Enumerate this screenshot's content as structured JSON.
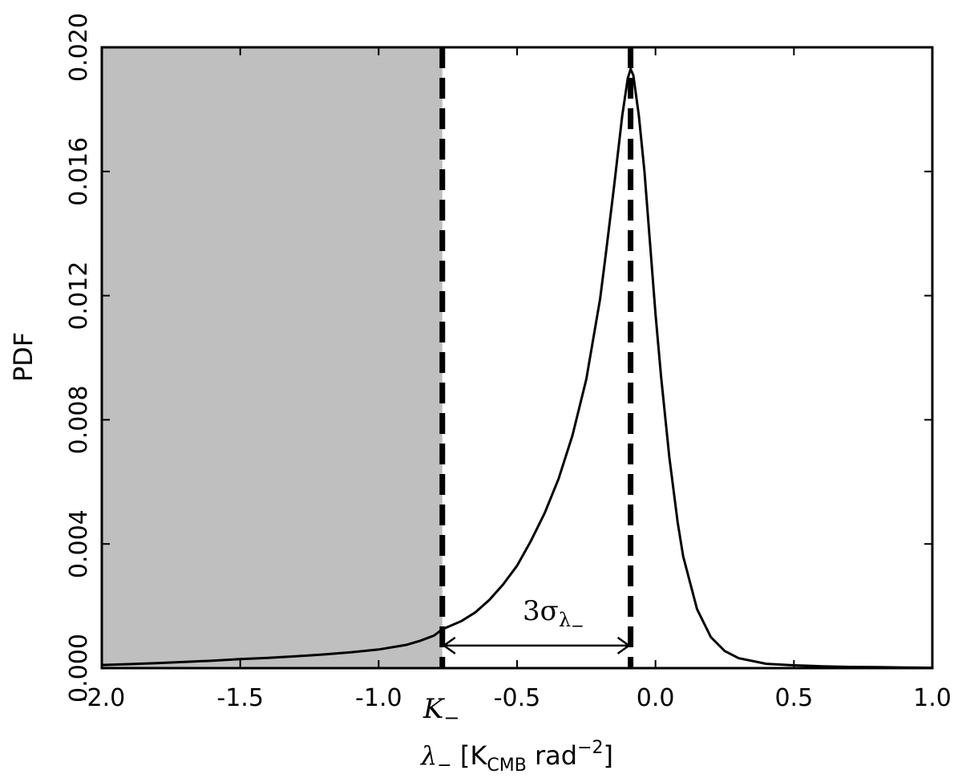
{
  "chart_data": {
    "type": "line",
    "title": "",
    "xlabel": "λ₋ [K_CMB rad⁻²]",
    "xlabel_parts": {
      "lambda": "λ",
      "lambda_sub": "−",
      "bracket_open": " [K",
      "k_sub": "CMB",
      "rad": " rad",
      "rad_sup": "−2",
      "bracket_close": "]"
    },
    "ylabel": "PDF",
    "xlim": [
      -2.0,
      1.0
    ],
    "ylim": [
      0.0,
      0.02
    ],
    "x_ticks": [
      {
        "value": -2.0,
        "label": "-2.0"
      },
      {
        "value": -1.5,
        "label": "-1.5"
      },
      {
        "value": -1.0,
        "label": "-1.0"
      },
      {
        "value": -0.5,
        "label": "-0.5"
      },
      {
        "value": 0.0,
        "label": "0.0"
      },
      {
        "value": 0.5,
        "label": "0.5"
      },
      {
        "value": 1.0,
        "label": "1.0"
      }
    ],
    "y_ticks": [
      {
        "value": 0.0,
        "label": "0.000"
      },
      {
        "value": 0.004,
        "label": "0.004"
      },
      {
        "value": 0.008,
        "label": "0.008"
      },
      {
        "value": 0.012,
        "label": "0.012"
      },
      {
        "value": 0.016,
        "label": "0.016"
      },
      {
        "value": 0.02,
        "label": "0.020"
      }
    ],
    "shaded_region": {
      "x_from": -2.0,
      "x_to": -0.77,
      "color": "#bfbfbf"
    },
    "vertical_lines": [
      {
        "x": -0.77,
        "style": "dashed",
        "label": "K₋",
        "label_main": "K",
        "label_sub": "−"
      },
      {
        "x": -0.09,
        "style": "dashed"
      }
    ],
    "arrow": {
      "x_from": -0.77,
      "x_to": -0.09,
      "y": 0.0007,
      "label": "3σλ₋",
      "label_main": "3σ",
      "label_sub1": "λ",
      "label_sub2": "−"
    },
    "series": [
      {
        "x": [
          -2.0,
          -1.9,
          -1.8,
          -1.7,
          -1.6,
          -1.5,
          -1.4,
          -1.3,
          -1.2,
          -1.1,
          -1.0,
          -0.9,
          -0.85,
          -0.8,
          -0.77,
          -0.7,
          -0.65,
          -0.6,
          -0.55,
          -0.5,
          -0.45,
          -0.4,
          -0.35,
          -0.3,
          -0.25,
          -0.2,
          -0.18,
          -0.15,
          -0.12,
          -0.1,
          -0.09,
          -0.08,
          -0.06,
          -0.04,
          -0.02,
          0.0,
          0.02,
          0.05,
          0.08,
          0.1,
          0.15,
          0.2,
          0.25,
          0.3,
          0.4,
          0.5,
          0.6,
          0.7,
          0.8,
          0.9,
          1.0
        ],
        "y": [
          0.0001,
          0.00013,
          0.00016,
          0.0002,
          0.00024,
          0.00029,
          0.00033,
          0.00038,
          0.00044,
          0.00051,
          0.0006,
          0.00075,
          0.00088,
          0.00105,
          0.00125,
          0.00152,
          0.0018,
          0.0022,
          0.0027,
          0.0033,
          0.0041,
          0.005,
          0.0061,
          0.0075,
          0.0093,
          0.0119,
          0.0133,
          0.0155,
          0.0178,
          0.019,
          0.0193,
          0.0191,
          0.0178,
          0.016,
          0.0137,
          0.0114,
          0.0094,
          0.0068,
          0.0047,
          0.0036,
          0.0019,
          0.001,
          0.00055,
          0.00032,
          0.00014,
          9e-05,
          6e-05,
          4e-05,
          3e-05,
          2e-05,
          1e-05
        ]
      }
    ],
    "grid": false,
    "colors": {
      "line": "#000000",
      "shade": "#bfbfbf"
    }
  }
}
